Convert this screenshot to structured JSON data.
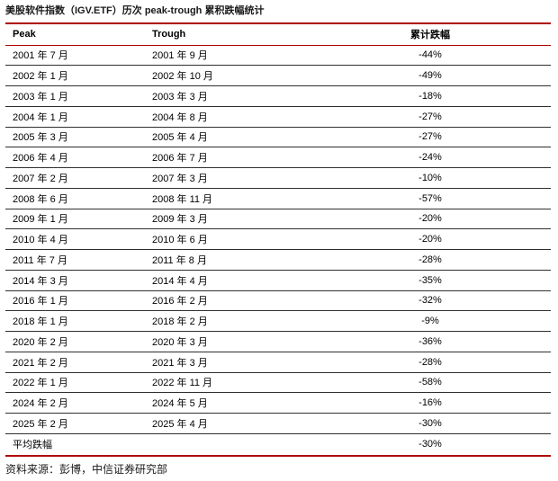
{
  "title": "美股软件指数（IGV.ETF）历次 peak-trough 累积跌幅统计",
  "source": "资料来源：彭博，中信证券研究部",
  "colors": {
    "accent_red": "#B00000",
    "row_separator": "#2F2F2F",
    "text": "#000000",
    "background": "#FFFFFF"
  },
  "table": {
    "headers": [
      "Peak",
      "Trough",
      "累计跌幅"
    ],
    "rows": [
      {
        "peak": "2001 年 7 月",
        "trough": "2001 年 9 月",
        "drawdown": "-44%"
      },
      {
        "peak": "2002 年 1 月",
        "trough": "2002 年 10 月",
        "drawdown": "-49%"
      },
      {
        "peak": "2003 年 1 月",
        "trough": "2003 年 3 月",
        "drawdown": "-18%"
      },
      {
        "peak": "2004 年 1 月",
        "trough": "2004 年 8 月",
        "drawdown": "-27%"
      },
      {
        "peak": "2005 年 3 月",
        "trough": "2005 年 4 月",
        "drawdown": "-27%"
      },
      {
        "peak": "2006 年 4 月",
        "trough": "2006 年 7 月",
        "drawdown": "-24%"
      },
      {
        "peak": "2007 年 2 月",
        "trough": "2007 年 3 月",
        "drawdown": "-10%"
      },
      {
        "peak": "2008 年 6 月",
        "trough": "2008 年 11 月",
        "drawdown": "-57%"
      },
      {
        "peak": "2009 年 1 月",
        "trough": "2009 年 3 月",
        "drawdown": "-20%"
      },
      {
        "peak": "2010 年 4 月",
        "trough": "2010 年 6 月",
        "drawdown": "-20%"
      },
      {
        "peak": "2011 年 7 月",
        "trough": "2011 年 8 月",
        "drawdown": "-28%"
      },
      {
        "peak": "2014 年 3 月",
        "trough": "2014 年 4 月",
        "drawdown": "-35%"
      },
      {
        "peak": "2016 年 1 月",
        "trough": "2016 年 2 月",
        "drawdown": "-32%"
      },
      {
        "peak": "2018 年 1 月",
        "trough": "2018 年 2 月",
        "drawdown": "-9%"
      },
      {
        "peak": "2020 年 2 月",
        "trough": "2020 年 3 月",
        "drawdown": "-36%"
      },
      {
        "peak": "2021 年 2 月",
        "trough": "2021 年 3 月",
        "drawdown": "-28%"
      },
      {
        "peak": "2022 年 1 月",
        "trough": "2022 年 11 月",
        "drawdown": "-58%"
      },
      {
        "peak": "2024 年 2 月",
        "trough": "2024 年 5 月",
        "drawdown": "-16%"
      },
      {
        "peak": "2025 年 2 月",
        "trough": "2025 年 4 月",
        "drawdown": "-30%"
      },
      {
        "peak": "平均跌幅",
        "trough": "",
        "drawdown": "-30%"
      }
    ]
  }
}
